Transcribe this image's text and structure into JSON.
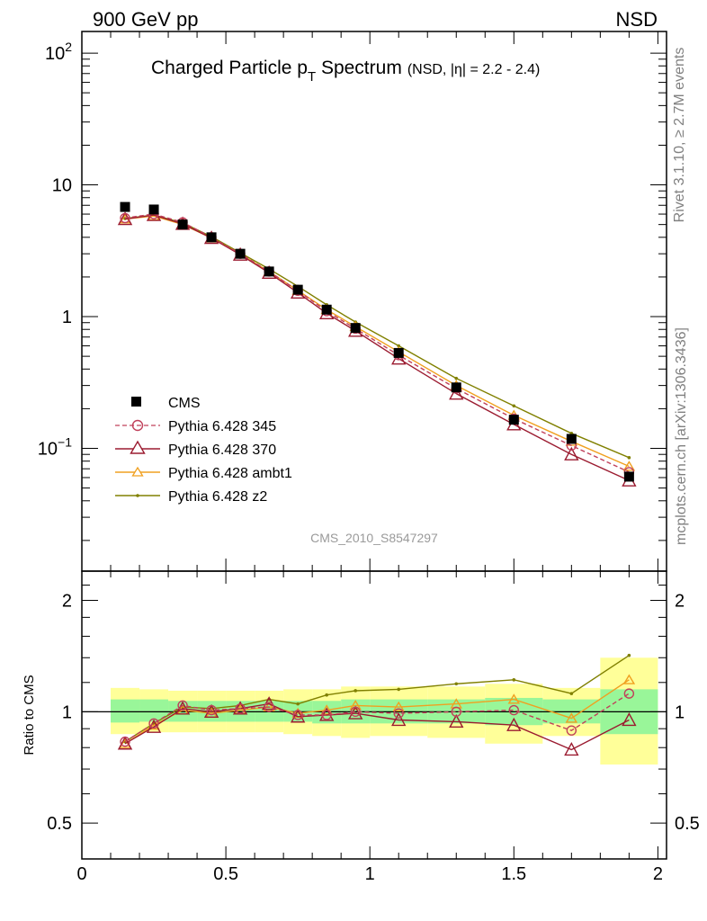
{
  "header": {
    "energy": "900 GeV pp",
    "process": "NSD"
  },
  "side_labels": {
    "rivet": "Rivet 3.1.10, ≥ 2.7M events",
    "source": "mcplots.cern.ch [arXiv:1306.3436]"
  },
  "chart_data": [
    {
      "type": "line",
      "panel": "main",
      "title": "Charged Particle p",
      "title_sub": "T",
      "title_tail": " Spectrum",
      "title_note": "(NSD, |η| = 2.2 - 2.4)",
      "watermark": "CMS_2010_S8547297",
      "xlabel": "",
      "ylabel": "",
      "xlim": [
        0,
        2.03
      ],
      "ylim": [
        0.0117,
        146
      ],
      "yscale": "log",
      "y_ticks": [
        {
          "v": 100,
          "label": "10",
          "sup": "2"
        },
        {
          "v": 10,
          "label": "10",
          "sup": ""
        },
        {
          "v": 1,
          "label": "1",
          "sup": ""
        },
        {
          "v": 0.1,
          "label": "10",
          "sup": "−1"
        }
      ],
      "legend_position": "lower-left",
      "x": [
        0.15,
        0.25,
        0.35,
        0.45,
        0.55,
        0.65,
        0.75,
        0.85,
        0.95,
        1.1,
        1.3,
        1.5,
        1.7,
        1.9
      ],
      "series": [
        {
          "name": "CMS",
          "color": "#000000",
          "marker": "square",
          "values": [
            6.8,
            6.5,
            5.0,
            4.0,
            3.0,
            2.2,
            1.6,
            1.13,
            0.82,
            0.53,
            0.29,
            0.165,
            0.118,
            0.061
          ]
        },
        {
          "name": "Pythia 6.428 345",
          "color": "#c0405a",
          "marker": "circle",
          "dash": "5,3",
          "values": [
            5.6,
            6.0,
            5.2,
            4.0,
            3.0,
            2.2,
            1.57,
            1.1,
            0.81,
            0.51,
            0.285,
            0.168,
            0.105,
            0.066
          ]
        },
        {
          "name": "Pythia 6.428 370",
          "color": "#9b1b30",
          "marker": "triangle",
          "values": [
            5.5,
            5.9,
            5.05,
            3.95,
            2.95,
            2.15,
            1.52,
            1.06,
            0.78,
            0.48,
            0.26,
            0.152,
            0.09,
            0.057
          ]
        },
        {
          "name": "Pythia 6.428 ambt1",
          "color": "#f0a020",
          "marker": "triangle",
          "values": [
            5.5,
            5.8,
            5.0,
            3.95,
            2.98,
            2.2,
            1.58,
            1.13,
            0.84,
            0.54,
            0.3,
            0.178,
            0.113,
            0.073
          ]
        },
        {
          "name": "Pythia 6.428 z2",
          "color": "#808000",
          "marker": "dot",
          "values": [
            5.55,
            5.9,
            5.15,
            4.05,
            3.05,
            2.3,
            1.7,
            1.23,
            0.91,
            0.6,
            0.34,
            0.21,
            0.13,
            0.085
          ]
        }
      ]
    },
    {
      "type": "line",
      "panel": "ratio",
      "xlabel": "",
      "ylabel": "Ratio to CMS",
      "xlim": [
        0,
        2.03
      ],
      "ylim": [
        0.4,
        2.4
      ],
      "yscale": "log",
      "y_ticks": [
        {
          "v": 2,
          "label": "2"
        },
        {
          "v": 1,
          "label": "1"
        },
        {
          "v": 0.5,
          "label": "0.5"
        }
      ],
      "x_ticks": [
        {
          "v": 0,
          "label": "0"
        },
        {
          "v": 0.5,
          "label": "0.5"
        },
        {
          "v": 1,
          "label": "1"
        },
        {
          "v": 1.5,
          "label": "1.5"
        },
        {
          "v": 2,
          "label": "2"
        }
      ],
      "reference_line": 1,
      "uncertainty_bands": [
        {
          "x0": 0.1,
          "x1": 0.2,
          "inner": [
            0.935,
            1.08
          ],
          "outer": [
            0.87,
            1.16
          ]
        },
        {
          "x0": 0.2,
          "x1": 0.3,
          "inner": [
            0.94,
            1.08
          ],
          "outer": [
            0.88,
            1.15
          ]
        },
        {
          "x0": 0.3,
          "x1": 0.4,
          "inner": [
            0.94,
            1.07
          ],
          "outer": [
            0.88,
            1.14
          ]
        },
        {
          "x0": 0.4,
          "x1": 0.5,
          "inner": [
            0.94,
            1.07
          ],
          "outer": [
            0.88,
            1.14
          ]
        },
        {
          "x0": 0.5,
          "x1": 0.6,
          "inner": [
            0.94,
            1.07
          ],
          "outer": [
            0.88,
            1.14
          ]
        },
        {
          "x0": 0.6,
          "x1": 0.7,
          "inner": [
            0.94,
            1.07
          ],
          "outer": [
            0.88,
            1.14
          ]
        },
        {
          "x0": 0.7,
          "x1": 0.8,
          "inner": [
            0.94,
            1.07
          ],
          "outer": [
            0.87,
            1.15
          ]
        },
        {
          "x0": 0.8,
          "x1": 0.9,
          "inner": [
            0.93,
            1.07
          ],
          "outer": [
            0.86,
            1.15
          ]
        },
        {
          "x0": 0.9,
          "x1": 1.0,
          "inner": [
            0.93,
            1.08
          ],
          "outer": [
            0.85,
            1.17
          ]
        },
        {
          "x0": 1.0,
          "x1": 1.2,
          "inner": [
            0.93,
            1.08
          ],
          "outer": [
            0.86,
            1.17
          ]
        },
        {
          "x0": 1.2,
          "x1": 1.4,
          "inner": [
            0.93,
            1.08
          ],
          "outer": [
            0.85,
            1.17
          ]
        },
        {
          "x0": 1.4,
          "x1": 1.6,
          "inner": [
            0.92,
            1.09
          ],
          "outer": [
            0.82,
            1.19
          ]
        },
        {
          "x0": 1.6,
          "x1": 1.8,
          "inner": [
            0.93,
            1.08
          ],
          "outer": [
            0.86,
            1.16
          ]
        },
        {
          "x0": 1.8,
          "x1": 2.0,
          "inner": [
            0.87,
            1.15
          ],
          "outer": [
            0.72,
            1.4
          ]
        }
      ],
      "x": [
        0.15,
        0.25,
        0.35,
        0.45,
        0.55,
        0.65,
        0.75,
        0.85,
        0.95,
        1.1,
        1.3,
        1.5,
        1.7,
        1.9
      ],
      "series": [
        {
          "name": "Pythia 6.428 345",
          "color": "#c0405a",
          "marker": "circle",
          "dash": "5,3",
          "values": [
            0.83,
            0.93,
            1.04,
            1.01,
            1.02,
            1.03,
            0.98,
            0.98,
            1.0,
            0.99,
            1.0,
            1.01,
            0.89,
            1.12
          ]
        },
        {
          "name": "Pythia 6.428 370",
          "color": "#9b1b30",
          "marker": "triangle",
          "values": [
            0.82,
            0.91,
            1.02,
            1.0,
            1.02,
            1.05,
            0.97,
            0.98,
            0.99,
            0.95,
            0.94,
            0.92,
            0.79,
            0.95
          ]
        },
        {
          "name": "Pythia 6.428 ambt1",
          "color": "#f0a020",
          "marker": "triangle",
          "values": [
            0.82,
            0.92,
            1.01,
            0.99,
            1.01,
            1.03,
            0.99,
            1.01,
            1.04,
            1.03,
            1.05,
            1.08,
            0.96,
            1.22
          ]
        },
        {
          "name": "Pythia 6.428 z2",
          "color": "#808000",
          "marker": "dot",
          "values": [
            0.83,
            0.93,
            1.03,
            1.02,
            1.04,
            1.08,
            1.05,
            1.11,
            1.14,
            1.15,
            1.19,
            1.22,
            1.12,
            1.42
          ]
        }
      ]
    }
  ]
}
